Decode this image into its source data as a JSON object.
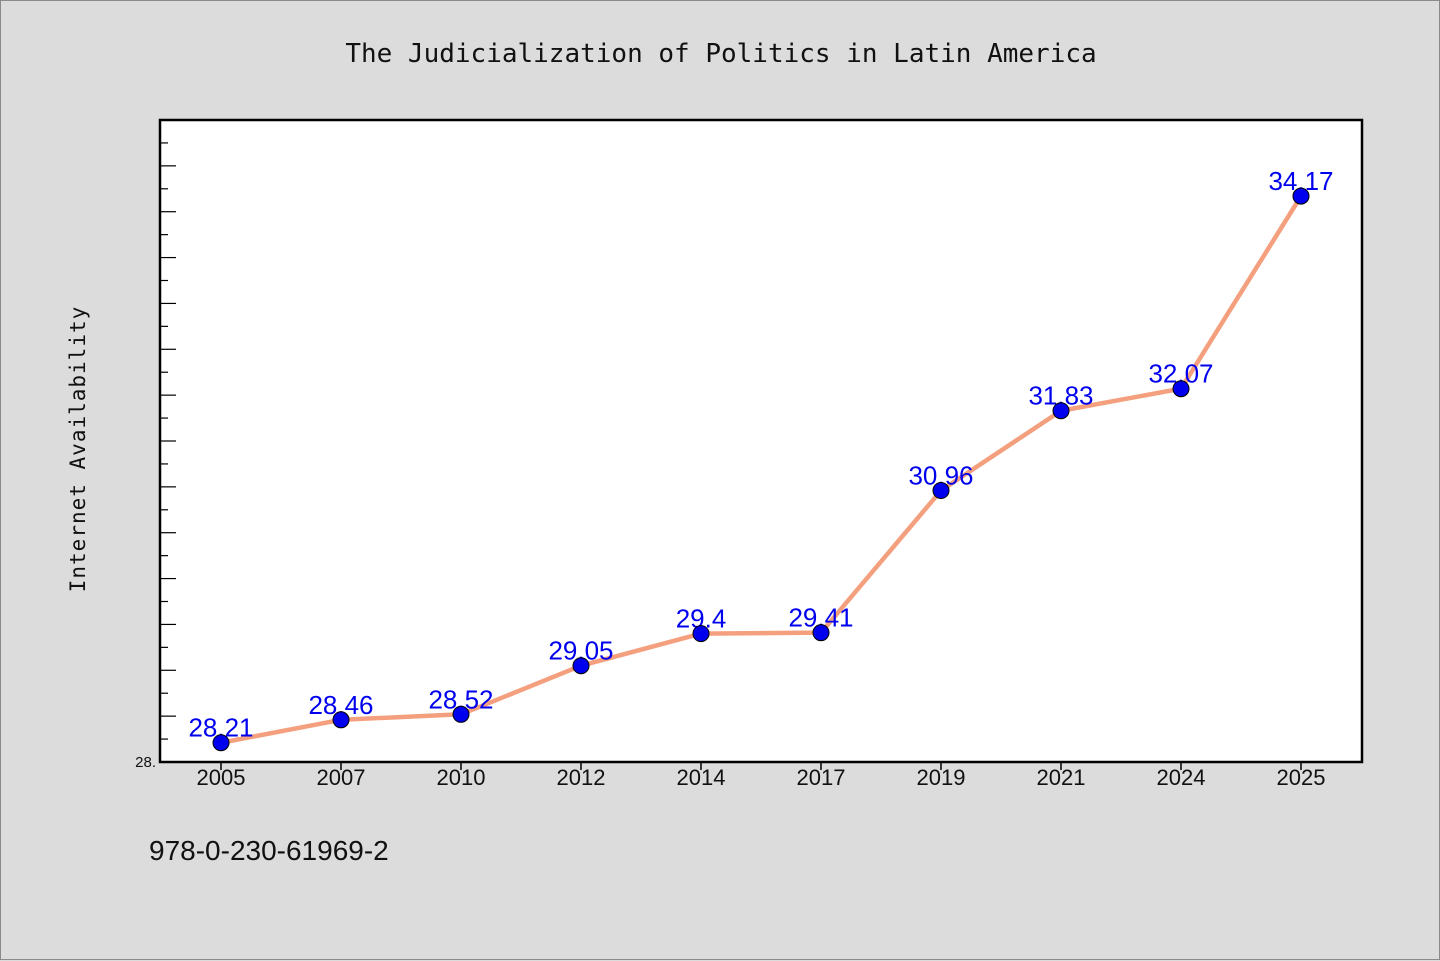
{
  "chart_data": {
    "type": "line",
    "title": "The Judicialization of Politics in Latin America",
    "ylabel": "Internet Availability",
    "categories": [
      "2005",
      "2007",
      "2010",
      "2012",
      "2014",
      "2017",
      "2019",
      "2021",
      "2024",
      "2025"
    ],
    "values": [
      28.21,
      28.46,
      28.52,
      29.05,
      29.4,
      29.41,
      30.96,
      31.83,
      32.07,
      34.17
    ],
    "data_labels": [
      "28.21",
      "28.46",
      "28.52",
      "29.05",
      "29.4",
      "29.41",
      "30.96",
      "31.83",
      "32.07",
      "34.17"
    ],
    "ylim": [
      28.0,
      35.0
    ],
    "y_tick_labels": [
      "28."
    ],
    "line_color": "#f4a07e",
    "marker_color": "#0000ee",
    "label_color": "#0000ee",
    "grid": false
  },
  "footer": {
    "code": "978-0-230-61969-2"
  }
}
